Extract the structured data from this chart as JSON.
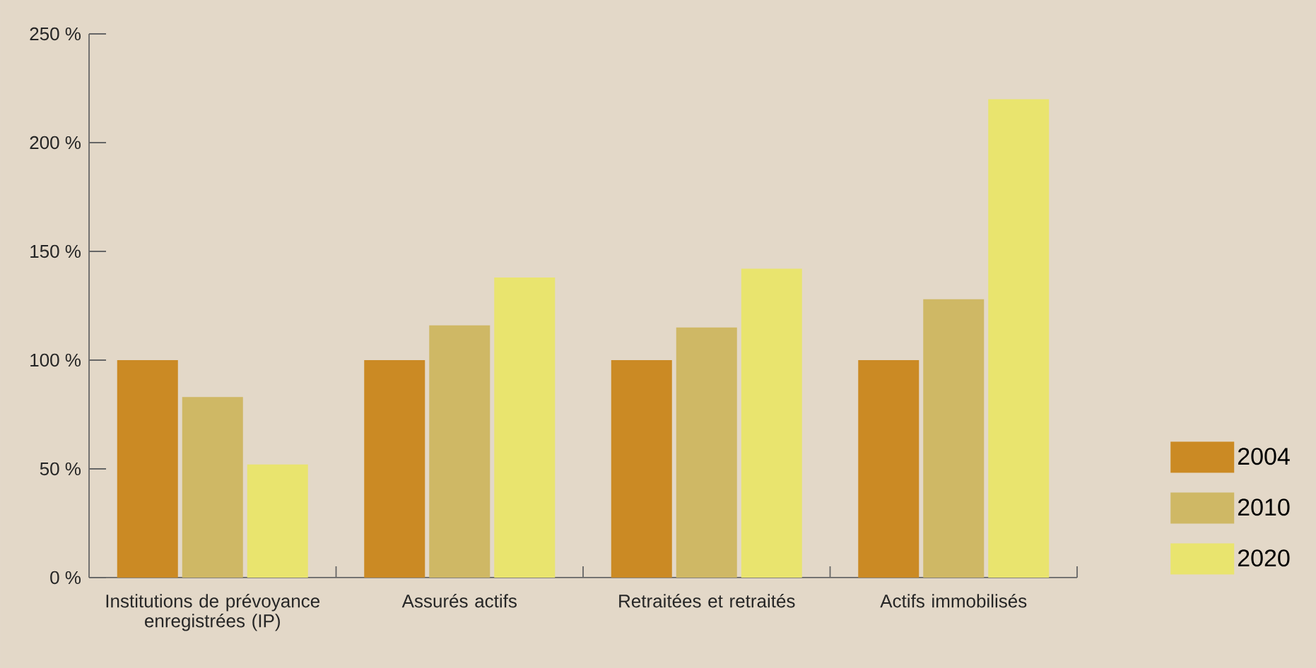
{
  "chart_data": {
    "type": "bar",
    "categories": [
      "Institutions de prévoyance enregistrées (IP)",
      "Assurés actifs",
      "Retraitées et retraités",
      "Actifs immobilisés"
    ],
    "series": [
      {
        "name": "2004",
        "color": "#cb8a24",
        "values": [
          100,
          100,
          100,
          100
        ]
      },
      {
        "name": "2010",
        "color": "#cfb865",
        "values": [
          83,
          116,
          115,
          128
        ]
      },
      {
        "name": "2020",
        "color": "#e9e46e",
        "values": [
          52,
          138,
          142,
          220
        ]
      }
    ],
    "ylim": [
      0,
      250
    ],
    "yticks": [
      {
        "value": 0,
        "label": "0 %"
      },
      {
        "value": 50,
        "label": "50 %"
      },
      {
        "value": 100,
        "label": "100 %"
      },
      {
        "value": 150,
        "label": "150 %"
      },
      {
        "value": 200,
        "label": "200 %"
      },
      {
        "value": 250,
        "label": "250 %"
      }
    ],
    "legend": "right"
  }
}
